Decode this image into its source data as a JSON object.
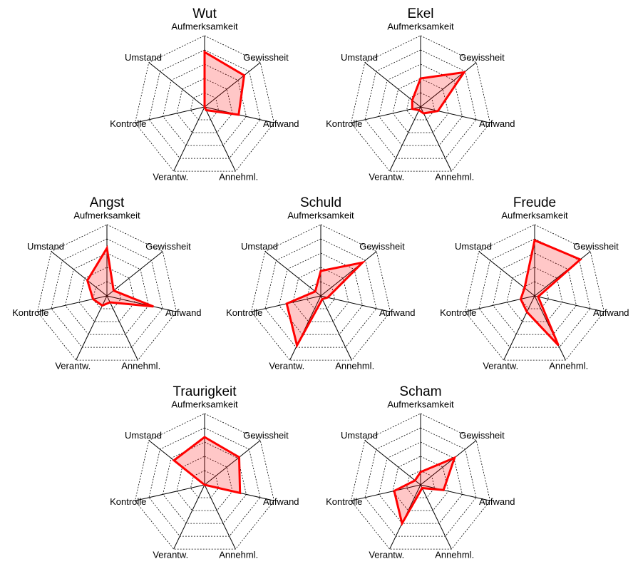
{
  "chart_data": [
    {
      "type": "radar",
      "title": "Wut",
      "categories": [
        "Aufmerksamkeit",
        "Gewissheit",
        "Aufwand",
        "Annehml.",
        "Verantw.",
        "Kontrolle",
        "Umstand"
      ],
      "values": [
        0.77,
        0.71,
        0.49,
        0.05,
        0,
        0,
        0
      ],
      "color": "#ff0000",
      "ylim": [
        0,
        1
      ],
      "rticks": [
        0.2,
        0.4,
        0.6,
        0.8,
        1
      ]
    },
    {
      "type": "radar",
      "title": "Ekel",
      "categories": [
        "Aufmerksamkeit",
        "Gewissheit",
        "Aufwand",
        "Annehml.",
        "Verantw.",
        "Kontrolle",
        "Umstand"
      ],
      "values": [
        0.4,
        0.78,
        0.25,
        0.1,
        0.05,
        0.12,
        0.15
      ],
      "color": "#ff0000",
      "ylim": [
        0,
        1
      ],
      "rticks": [
        0.2,
        0.4,
        0.6,
        0.8,
        1
      ]
    },
    {
      "type": "radar",
      "title": "Angst",
      "categories": [
        "Aufmerksamkeit",
        "Gewissheit",
        "Aufwand",
        "Annehml.",
        "Verantw.",
        "Kontrolle",
        "Umstand"
      ],
      "values": [
        0.67,
        0.12,
        0.67,
        0.1,
        0.15,
        0.2,
        0.35
      ],
      "color": "#ff0000",
      "ylim": [
        0,
        1
      ],
      "rticks": [
        0.2,
        0.4,
        0.6,
        0.8,
        1
      ]
    },
    {
      "type": "radar",
      "title": "Schuld",
      "categories": [
        "Aufmerksamkeit",
        "Gewissheit",
        "Aufwand",
        "Annehml.",
        "Verantw.",
        "Kontrolle",
        "Umstand"
      ],
      "values": [
        0.35,
        0.75,
        0.1,
        0.05,
        0.77,
        0.49,
        0.1
      ],
      "color": "#ff0000",
      "ylim": [
        0,
        1
      ],
      "rticks": [
        0.2,
        0.4,
        0.6,
        0.8,
        1
      ]
    },
    {
      "type": "radar",
      "title": "Freude",
      "categories": [
        "Aufmerksamkeit",
        "Gewissheit",
        "Aufwand",
        "Annehml.",
        "Verantw.",
        "Kontrolle",
        "Umstand"
      ],
      "values": [
        0.78,
        0.82,
        0.05,
        0.77,
        0.25,
        0.2,
        0.18
      ],
      "color": "#ff0000",
      "ylim": [
        0,
        1
      ],
      "rticks": [
        0.2,
        0.4,
        0.6,
        0.8,
        1
      ]
    },
    {
      "type": "radar",
      "title": "Traurigkeit",
      "categories": [
        "Aufmerksamkeit",
        "Gewissheit",
        "Aufwand",
        "Annehml.",
        "Verantw.",
        "Kontrolle",
        "Umstand"
      ],
      "values": [
        0.67,
        0.62,
        0.51,
        0,
        0,
        0,
        0.55
      ],
      "color": "#ff0000",
      "ylim": [
        0,
        1
      ],
      "rticks": [
        0.2,
        0.4,
        0.6,
        0.8,
        1
      ]
    },
    {
      "type": "radar",
      "title": "Scham",
      "categories": [
        "Aufmerksamkeit",
        "Gewissheit",
        "Aufwand",
        "Annehml.",
        "Verantw.",
        "Kontrolle",
        "Umstand"
      ],
      "values": [
        0.18,
        0.61,
        0.33,
        0.05,
        0.6,
        0.38,
        0.1
      ],
      "color": "#ff0000",
      "ylim": [
        0,
        1
      ],
      "rticks": [
        0.2,
        0.4,
        0.6,
        0.8,
        1
      ]
    }
  ]
}
